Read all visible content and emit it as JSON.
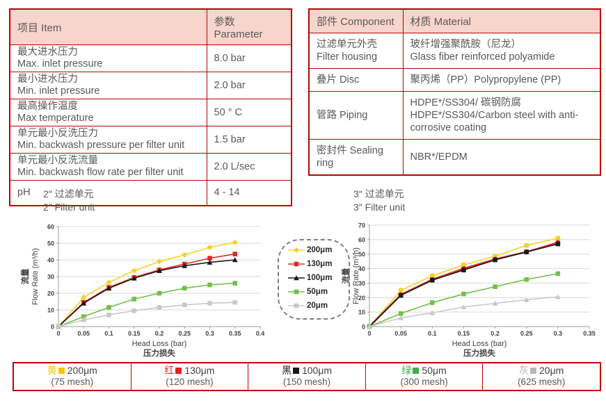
{
  "spec_table": {
    "headers": [
      "项目 Item",
      "参数 Parameter"
    ],
    "rows": [
      {
        "item_cn": "最大进水压力",
        "item_en": "Max. inlet pressure",
        "value": "8.0 bar"
      },
      {
        "item_cn": "最小进水压力",
        "item_en": "Min. inlet pressure",
        "value": "2.0 bar"
      },
      {
        "item_cn": "最高操作温度",
        "item_en": "Max temperature",
        "value": "50 ° C"
      },
      {
        "item_cn": "单元最小反洗压力",
        "item_en": "Min. backwash pressure per filter unit",
        "value": "1.5 bar"
      },
      {
        "item_cn": "单元最小反洗流量",
        "item_en": "Min. backwash flow rate per filter unit",
        "value": "2.0 L/sec"
      },
      {
        "item_cn": "pH",
        "item_en": "",
        "value": "4 - 14"
      }
    ]
  },
  "material_table": {
    "headers": [
      "部件 Component",
      "材质 Material"
    ],
    "rows": [
      {
        "comp_cn": "过滤单元外壳",
        "comp_en": "Filter housing",
        "mat_cn": "玻纤增强聚酰胺（尼龙）",
        "mat_en": "Glass fiber reinforced polyamide"
      },
      {
        "comp_cn": "叠片 Disc",
        "comp_en": "",
        "mat_cn": "聚丙烯（PP）Polypropylene (PP)",
        "mat_en": ""
      },
      {
        "comp_cn": "管路 Piping",
        "comp_en": "",
        "mat_cn": "HDPE*/SS304/ 碳钢防腐",
        "mat_en": "HDPE*/SS304/Carbon steel with anti-corrosive coating"
      },
      {
        "comp_cn": "密封件 Sealing ring",
        "comp_en": "",
        "mat_cn": "NBR*/EPDM",
        "mat_en": ""
      }
    ]
  },
  "chart_data": [
    {
      "type": "line",
      "title_cn": "2″  过滤单元",
      "title_en": "2″  Filter unit",
      "xlabel": "Head Loss (bar)",
      "xlabel_cn": "压力损失",
      "ylabel_cn": "流量",
      "ylabel_en": "Flow Rate (m³/h)",
      "xlim": [
        0,
        0.4
      ],
      "ylim": [
        0,
        60
      ],
      "xticks": [
        0,
        0.05,
        0.1,
        0.15,
        0.2,
        0.25,
        0.3,
        0.35,
        0.4
      ],
      "yticks": [
        0,
        10,
        20,
        30,
        40,
        50,
        60
      ],
      "grid": "horizontal",
      "legend_position": "between-charts",
      "x": [
        0,
        0.05,
        0.1,
        0.15,
        0.2,
        0.25,
        0.3,
        0.35
      ],
      "series": [
        {
          "name": "200μm",
          "color": "#f2d32b",
          "marker": "diamond",
          "lw": 1.6,
          "values": [
            0,
            17.5,
            26.5,
            33.5,
            39,
            43,
            47.5,
            50.5
          ]
        },
        {
          "name": "130μm",
          "color": "#e02b20",
          "marker": "square",
          "lw": 1.6,
          "values": [
            0,
            14.5,
            23.5,
            29.5,
            34,
            37.5,
            41,
            43.5
          ]
        },
        {
          "name": "100μm",
          "color": "#1a1a1a",
          "marker": "triangle",
          "lw": 1.6,
          "values": [
            0,
            14,
            23,
            29,
            33.5,
            36.5,
            38.5,
            40
          ]
        },
        {
          "name": "50μm",
          "color": "#71bf49",
          "marker": "square",
          "lw": 1.6,
          "values": [
            0,
            6,
            11.5,
            16.5,
            20,
            23,
            25,
            26
          ]
        },
        {
          "name": "20μm",
          "color": "#c9c9c9",
          "marker": "square",
          "lw": 1.6,
          "values": [
            0,
            4,
            7,
            9.5,
            11.5,
            13,
            14,
            14.5
          ]
        }
      ]
    },
    {
      "type": "line",
      "title_cn": "3″  过滤单元",
      "title_en": "3″  Filter unit",
      "xlabel": "Head Loss (bar)",
      "xlabel_cn": "压力损失",
      "ylabel_cn": "流量",
      "ylabel_en": "Flow Rate (m³/h)",
      "xlim": [
        0,
        0.35
      ],
      "ylim": [
        0,
        70
      ],
      "xticks": [
        0,
        0.05,
        0.1,
        0.15,
        0.2,
        0.25,
        0.3,
        0.35
      ],
      "yticks": [
        0,
        10,
        20,
        30,
        40,
        50,
        60,
        70
      ],
      "grid": "horizontal",
      "x": [
        0,
        0.05,
        0.1,
        0.15,
        0.2,
        0.25,
        0.3
      ],
      "series": [
        {
          "name": "200μm",
          "color": "#f2d32b",
          "marker": "square",
          "lw": 1.6,
          "values": [
            0,
            25,
            35,
            42.5,
            48.5,
            56,
            61
          ]
        },
        {
          "name": "130μm",
          "color": "#e02b20",
          "marker": "circle",
          "lw": 2.4,
          "values": [
            0,
            22,
            32.5,
            40,
            46.5,
            51.5,
            58
          ]
        },
        {
          "name": "100μm",
          "color": "#1a1a1a",
          "marker": "square",
          "lw": 1.6,
          "values": [
            0,
            21.5,
            32,
            39,
            46,
            51.5,
            57
          ]
        },
        {
          "name": "50μm",
          "color": "#71bf49",
          "marker": "square",
          "lw": 1.6,
          "values": [
            0,
            9,
            16.5,
            22.5,
            27.5,
            32.5,
            36.5
          ]
        },
        {
          "name": "20μm",
          "color": "#c9c9c9",
          "marker": "triangle",
          "lw": 1.6,
          "values": [
            0,
            6,
            9.5,
            13.5,
            16,
            18.5,
            20.5
          ]
        }
      ]
    }
  ],
  "chart_legend": {
    "entries": [
      {
        "label": "200μm",
        "color": "#f2d32b",
        "marker": "diamond"
      },
      {
        "label": "130μm",
        "color": "#e02b20",
        "marker": "square"
      },
      {
        "label": "100μm",
        "color": "#1a1a1a",
        "marker": "triangle"
      },
      {
        "label": "50μm",
        "color": "#71bf49",
        "marker": "square"
      },
      {
        "label": "20μm",
        "color": "#c9c9c9",
        "marker": "square"
      }
    ]
  },
  "mesh_legend": {
    "items": [
      {
        "cn": "黄",
        "label": "200μm",
        "mesh": "(75 mesh)",
        "color": "#ffc000"
      },
      {
        "cn": "红",
        "label": "130μm",
        "mesh": "(120 mesh)",
        "color": "#e32119"
      },
      {
        "cn": "黑",
        "label": "100μm",
        "mesh": "(150 mesh)",
        "color": "#1a1a1a"
      },
      {
        "cn": "绿",
        "label": "50μm",
        "mesh": "(300 mesh)",
        "color": "#3fae49"
      },
      {
        "cn": "灰",
        "label": "20μm",
        "mesh": "(625 mesh)",
        "color": "#b7b7b7"
      }
    ]
  },
  "colors": {
    "table_border": "#c00000",
    "table_header_bg": "#f7d5cc",
    "text": "#595959",
    "gridline": "#d9d9d9",
    "axis": "#9b9b9b"
  }
}
